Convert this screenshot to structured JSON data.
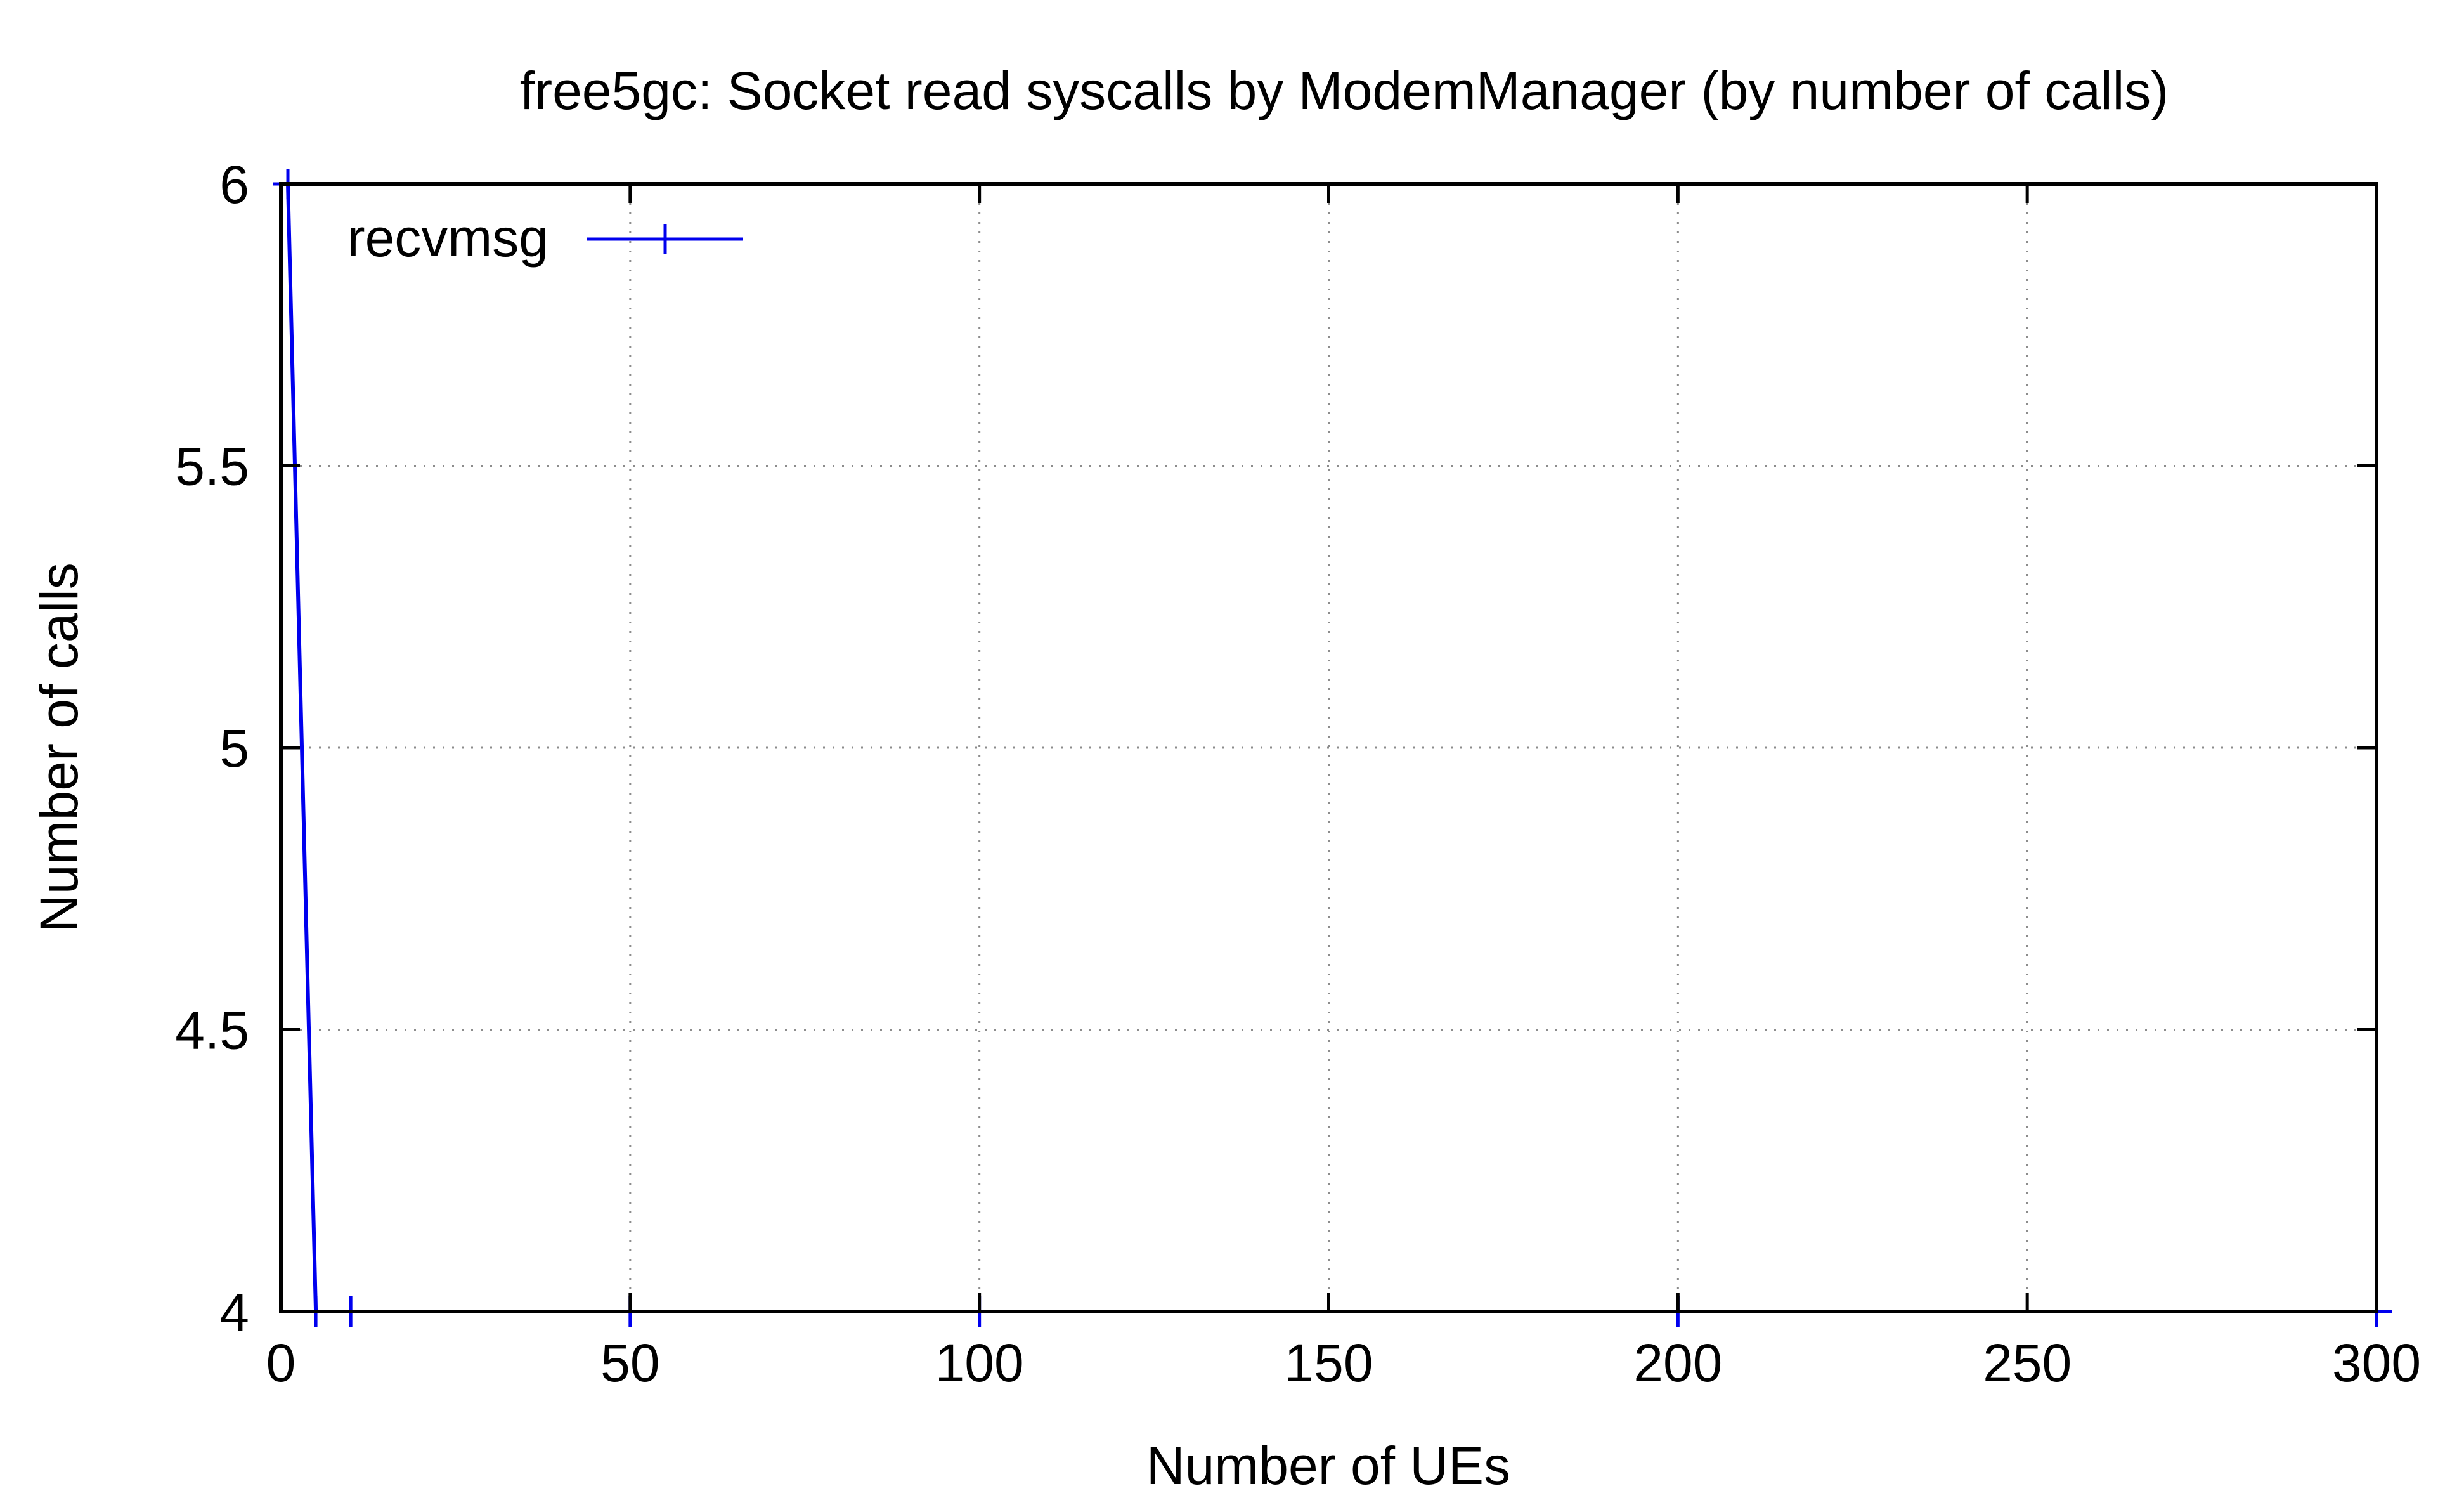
{
  "chart_data": {
    "type": "line",
    "title": "free5gc: Socket read syscalls by ModemManager (by number of calls)",
    "xlabel": "Number of UEs",
    "ylabel": "Number of calls",
    "xlim": [
      0,
      300
    ],
    "ylim": [
      4,
      6
    ],
    "x_ticks": [
      0,
      50,
      100,
      150,
      200,
      250,
      300
    ],
    "x_tick_labels": [
      "0",
      "50",
      "100",
      "150",
      "200",
      "250",
      "300"
    ],
    "y_ticks": [
      4,
      4.5,
      5,
      5.5,
      6
    ],
    "y_tick_labels": [
      "4",
      "4.5",
      "5",
      "5.5",
      "6"
    ],
    "grid": true,
    "legend_position": "top-left",
    "series": [
      {
        "name": "recvmsg",
        "color": "#0000ee",
        "x": [
          1,
          5,
          10,
          50,
          100,
          200,
          300
        ],
        "values": [
          6,
          4,
          4,
          4,
          4,
          4,
          4
        ]
      }
    ]
  }
}
